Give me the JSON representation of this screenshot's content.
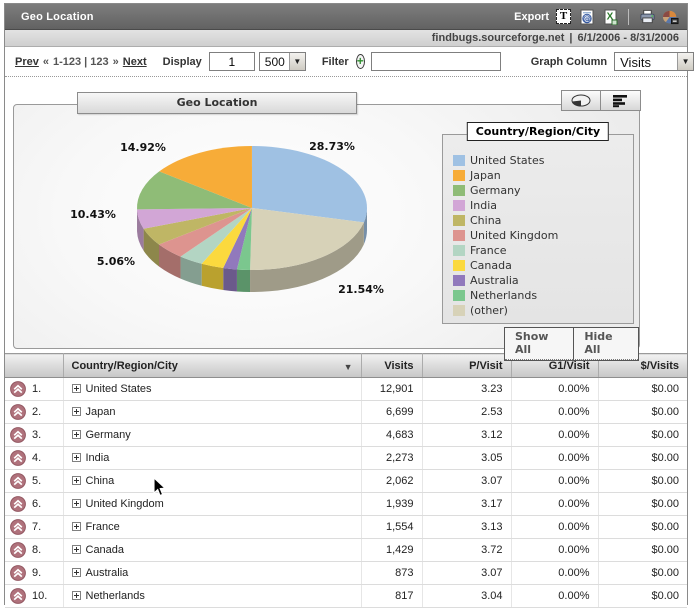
{
  "titlebar": {
    "title": "Geo Location",
    "export_label": "Export",
    "icons": [
      "tab-text-export-icon",
      "doc-export-icon",
      "excel-export-icon",
      "print-icon",
      "graph-minimize-icon"
    ]
  },
  "infobar": {
    "site": "findbugs.sourceforge.net",
    "separator": "|",
    "date_range": "6/1/2006 - 8/31/2006"
  },
  "toolbar": {
    "prev": "Prev",
    "prev_chevrons": "«",
    "range": "1-123 | 123",
    "next_chevrons": "»",
    "next": "Next",
    "display_label": "Display",
    "display_value": "1",
    "page_size_value": "500",
    "filter_label": "Filter",
    "filter_value": "",
    "graph_column_label": "Graph Column",
    "graph_column_value": "Visits"
  },
  "chart": {
    "tab_title": "Geo Location",
    "legend_title": "Country/Region/City",
    "show_all_label": "Show All",
    "hide_all_label": "Hide All"
  },
  "chart_data": {
    "type": "pie",
    "title": "Geo Location",
    "legend_title": "Country/Region/City",
    "legend_position": "right",
    "style": "3d-ellipse",
    "slices": [
      {
        "label": "United States",
        "percent": 28.73,
        "color": "#9FC1E3",
        "show_label": true,
        "label_pos": [
          318,
          45
        ]
      },
      {
        "label": "Japan",
        "percent": 14.92,
        "color": "#F7AC38",
        "show_label": true,
        "label_pos": [
          129,
          46
        ]
      },
      {
        "label": "Germany",
        "percent": 10.43,
        "color": "#8FBC77",
        "show_label": true,
        "label_pos": [
          79,
          113
        ]
      },
      {
        "label": "India",
        "percent": 5.06,
        "color": "#D2A6D6",
        "show_label": true,
        "label_pos": [
          102,
          160
        ]
      },
      {
        "label": "China",
        "percent": 4.59,
        "color": "#BFB665",
        "show_label": false
      },
      {
        "label": "United Kingdom",
        "percent": 4.32,
        "color": "#DD948F",
        "show_label": false
      },
      {
        "label": "France",
        "percent": 3.46,
        "color": "#B3D5C3",
        "show_label": false
      },
      {
        "label": "Canada",
        "percent": 3.18,
        "color": "#FBD93E",
        "show_label": false
      },
      {
        "label": "Australia",
        "percent": 1.94,
        "color": "#9179BC",
        "show_label": false
      },
      {
        "label": "Netherlands",
        "percent": 1.82,
        "color": "#7BC78E",
        "show_label": false
      },
      {
        "label": "(other)",
        "percent": 21.54,
        "color": "#D7D2B8",
        "show_label": true,
        "label_pos": [
          347,
          188
        ]
      }
    ]
  },
  "table": {
    "columns": [
      "",
      "Country/Region/City",
      "Visits",
      "P/Visit",
      "G1/Visit",
      "$/Visits"
    ],
    "rows": [
      {
        "rank": "1.",
        "name": "United States",
        "visits": "12,901",
        "p_visit": "3.23",
        "g1_visit": "0.00%",
        "d_visits": "$0.00"
      },
      {
        "rank": "2.",
        "name": "Japan",
        "visits": "6,699",
        "p_visit": "2.53",
        "g1_visit": "0.00%",
        "d_visits": "$0.00"
      },
      {
        "rank": "3.",
        "name": "Germany",
        "visits": "4,683",
        "p_visit": "3.12",
        "g1_visit": "0.00%",
        "d_visits": "$0.00"
      },
      {
        "rank": "4.",
        "name": "India",
        "visits": "2,273",
        "p_visit": "3.05",
        "g1_visit": "0.00%",
        "d_visits": "$0.00"
      },
      {
        "rank": "5.",
        "name": "China",
        "visits": "2,062",
        "p_visit": "3.07",
        "g1_visit": "0.00%",
        "d_visits": "$0.00"
      },
      {
        "rank": "6.",
        "name": "United Kingdom",
        "visits": "1,939",
        "p_visit": "3.17",
        "g1_visit": "0.00%",
        "d_visits": "$0.00"
      },
      {
        "rank": "7.",
        "name": "France",
        "visits": "1,554",
        "p_visit": "3.13",
        "g1_visit": "0.00%",
        "d_visits": "$0.00"
      },
      {
        "rank": "8.",
        "name": "Canada",
        "visits": "1,429",
        "p_visit": "3.72",
        "g1_visit": "0.00%",
        "d_visits": "$0.00"
      },
      {
        "rank": "9.",
        "name": "Australia",
        "visits": "873",
        "p_visit": "3.07",
        "g1_visit": "0.00%",
        "d_visits": "$0.00"
      },
      {
        "rank": "10.",
        "name": "Netherlands",
        "visits": "817",
        "p_visit": "3.04",
        "g1_visit": "0.00%",
        "d_visits": "$0.00"
      }
    ]
  }
}
